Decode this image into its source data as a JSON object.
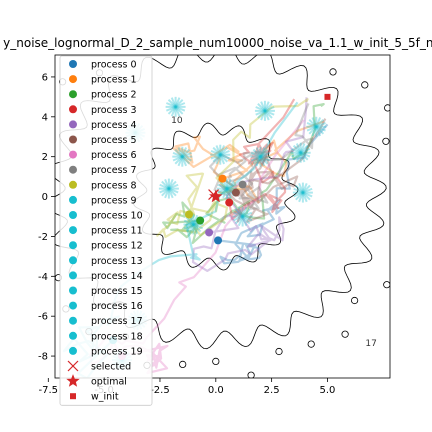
{
  "chart_data": {
    "type": "scatter",
    "title": "y_noise_lognormal_D_2_sample_num10000_noise_va_1.1_w_init_5_5f_ne",
    "xlabel": "",
    "ylabel": "",
    "xlim": [
      -7.2,
      7.8
    ],
    "ylim": [
      -9.1,
      7.1
    ],
    "x_ticks": [
      -7.5,
      -5.0,
      -2.5,
      0.0,
      2.5,
      5.0
    ],
    "x_tick_labels": [
      "-7.5",
      "-5.0",
      "-2.5",
      "0.0",
      "2.5",
      "5.0"
    ],
    "y_ticks": [
      -8,
      -6,
      -4,
      -2,
      0,
      2,
      4,
      6
    ],
    "y_tick_labels": [
      "-8",
      "-6",
      "-4",
      "-2",
      "0",
      "2",
      "4",
      "6"
    ],
    "grid": false,
    "legend_position": "left",
    "legend": [
      {
        "label": "process 0",
        "color": "#1f77b4",
        "marker": "circle"
      },
      {
        "label": "process 1",
        "color": "#ff7f0e",
        "marker": "circle"
      },
      {
        "label": "process 2",
        "color": "#2ca02c",
        "marker": "circle"
      },
      {
        "label": "process 3",
        "color": "#d62728",
        "marker": "circle"
      },
      {
        "label": "process 4",
        "color": "#9467bd",
        "marker": "circle"
      },
      {
        "label": "process 5",
        "color": "#8c564b",
        "marker": "circle"
      },
      {
        "label": "process 6",
        "color": "#e377c2",
        "marker": "circle"
      },
      {
        "label": "process 7",
        "color": "#7f7f7f",
        "marker": "circle"
      },
      {
        "label": "process 8",
        "color": "#bcbd22",
        "marker": "circle"
      },
      {
        "label": "process 9",
        "color": "#17becf",
        "marker": "circle"
      },
      {
        "label": "process 10",
        "color": "#17becf",
        "marker": "circle"
      },
      {
        "label": "process 11",
        "color": "#17becf",
        "marker": "circle"
      },
      {
        "label": "process 12",
        "color": "#17becf",
        "marker": "circle"
      },
      {
        "label": "process 13",
        "color": "#17becf",
        "marker": "circle"
      },
      {
        "label": "process 14",
        "color": "#17becf",
        "marker": "circle"
      },
      {
        "label": "process 15",
        "color": "#17becf",
        "marker": "circle"
      },
      {
        "label": "process 16",
        "color": "#17becf",
        "marker": "circle"
      },
      {
        "label": "process 17",
        "color": "#17becf",
        "marker": "circle"
      },
      {
        "label": "process 18",
        "color": "#17becf",
        "marker": "circle"
      },
      {
        "label": "process 19",
        "color": "#17becf",
        "marker": "circle"
      },
      {
        "label": "selected",
        "color": "#d62728",
        "marker": "x"
      },
      {
        "label": "optimal",
        "color": "#d62728",
        "marker": "star"
      },
      {
        "label": "w_init",
        "color": "#d62728",
        "marker": "square"
      }
    ],
    "contour_labels": [
      {
        "text": "10",
        "x": -2.0,
        "y": 3.7
      },
      {
        "text": "17",
        "x": 6.7,
        "y": -7.5
      }
    ],
    "series": [
      {
        "name": "process 0",
        "color": "#1f77b4",
        "final": [
          0.1,
          -2.2
        ]
      },
      {
        "name": "process 1",
        "color": "#ff7f0e",
        "final": [
          0.3,
          0.9
        ]
      },
      {
        "name": "process 2",
        "color": "#2ca02c",
        "final": [
          -0.7,
          -1.2
        ]
      },
      {
        "name": "process 3",
        "color": "#d62728",
        "final": [
          0.6,
          -0.3
        ]
      },
      {
        "name": "process 4",
        "color": "#9467bd",
        "final": [
          -0.3,
          -1.8
        ]
      },
      {
        "name": "process 5",
        "color": "#8c564b",
        "final": [
          0.9,
          0.2
        ]
      },
      {
        "name": "process 6",
        "color": "#e377c2",
        "final": [
          -4.2,
          -8.0
        ]
      },
      {
        "name": "process 7",
        "color": "#7f7f7f",
        "final": [
          1.2,
          0.6
        ]
      },
      {
        "name": "process 8",
        "color": "#bcbd22",
        "final": [
          -1.2,
          -0.9
        ]
      },
      {
        "name": "process 9",
        "color": "#17becf",
        "final": [
          -4.6,
          -7.2
        ]
      }
    ],
    "selected": [
      -0.1,
      0.1
    ],
    "optimal": [
      0.0,
      0.0
    ],
    "w_init": [
      5.0,
      5.0
    ]
  }
}
